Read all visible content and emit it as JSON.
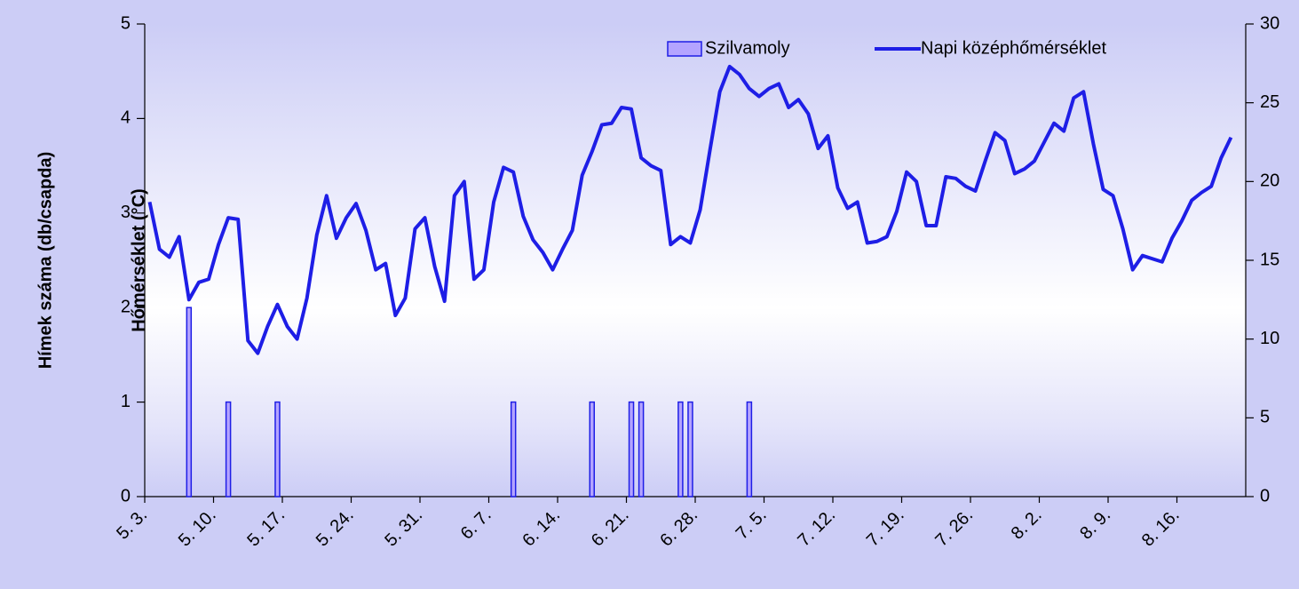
{
  "chart_data": {
    "type": "combo",
    "categories": [
      "5. 3.",
      null,
      null,
      null,
      null,
      null,
      null,
      "5. 10.",
      null,
      null,
      null,
      null,
      null,
      null,
      "5. 17.",
      null,
      null,
      null,
      null,
      null,
      null,
      "5. 24.",
      null,
      null,
      null,
      null,
      null,
      null,
      "5. 31.",
      null,
      null,
      null,
      null,
      null,
      null,
      "6. 7.",
      null,
      null,
      null,
      null,
      null,
      null,
      "6. 14.",
      null,
      null,
      null,
      null,
      null,
      null,
      "6. 21.",
      null,
      null,
      null,
      null,
      null,
      null,
      "6. 28.",
      null,
      null,
      null,
      null,
      null,
      null,
      "7. 5.",
      null,
      null,
      null,
      null,
      null,
      null,
      "7. 12.",
      null,
      null,
      null,
      null,
      null,
      null,
      "7. 19.",
      null,
      null,
      null,
      null,
      null,
      null,
      "7. 26.",
      null,
      null,
      null,
      null,
      null,
      null,
      "8. 2.",
      null,
      null,
      null,
      null,
      null,
      null,
      "8. 9.",
      null,
      null,
      null,
      null,
      null,
      null,
      "8. 16.",
      null,
      null,
      null,
      null,
      null,
      null
    ],
    "series": [
      {
        "name": "Szilvamoly",
        "type": "bar",
        "color": "#b4a4ff",
        "stroke": "#1e1ee6",
        "values": [
          0,
          0,
          0,
          0,
          2,
          0,
          0,
          0,
          1,
          0,
          0,
          0,
          0,
          1,
          0,
          0,
          0,
          0,
          0,
          0,
          0,
          0,
          0,
          0,
          0,
          0,
          0,
          0,
          0,
          0,
          0,
          0,
          0,
          0,
          0,
          0,
          0,
          1,
          0,
          0,
          0,
          0,
          0,
          0,
          0,
          1,
          0,
          0,
          0,
          1,
          1,
          0,
          0,
          0,
          1,
          1,
          0,
          0,
          0,
          0,
          0,
          1,
          0,
          0,
          0,
          0,
          0,
          0,
          0,
          0,
          0,
          0,
          0,
          0,
          0,
          0,
          0,
          0,
          0,
          0,
          0,
          0,
          0,
          0,
          0,
          0,
          0,
          0,
          0,
          0,
          0,
          0,
          0,
          0,
          0,
          0,
          0,
          0,
          0,
          0,
          0,
          0,
          0,
          0,
          0,
          0,
          0,
          0,
          0,
          0,
          0,
          0
        ]
      },
      {
        "name": "Napi középhőmérséklet",
        "type": "line",
        "axis": "y2",
        "color": "#1e1ee6",
        "values": [
          18.7,
          15.7,
          15.2,
          16.5,
          12.5,
          13.6,
          13.8,
          16.0,
          17.7,
          17.6,
          9.9,
          9.1,
          10.8,
          12.2,
          10.8,
          10.0,
          12.6,
          16.6,
          19.1,
          16.4,
          17.7,
          18.6,
          16.9,
          14.4,
          14.8,
          11.5,
          12.6,
          17.0,
          17.7,
          14.6,
          12.4,
          19.1,
          20.0,
          13.8,
          14.4,
          18.7,
          20.9,
          20.6,
          17.8,
          16.3,
          15.5,
          14.4,
          15.7,
          16.9,
          20.4,
          21.9,
          23.6,
          23.7,
          24.7,
          24.6,
          21.5,
          21.0,
          20.7,
          16.0,
          16.5,
          16.1,
          18.2,
          22.0,
          25.7,
          27.3,
          26.8,
          25.9,
          25.4,
          25.9,
          26.2,
          24.7,
          25.2,
          24.3,
          22.1,
          22.9,
          19.6,
          18.3,
          18.7,
          16.1,
          16.2,
          16.5,
          18.1,
          20.6,
          20.0,
          17.2,
          17.2,
          20.3,
          20.2,
          19.7,
          19.4,
          21.3,
          23.1,
          22.6,
          20.5,
          20.8,
          21.3,
          22.5,
          23.7,
          23.2,
          25.3,
          25.7,
          22.4,
          19.5,
          19.1,
          17.0,
          14.4,
          15.3,
          15.1,
          14.9,
          16.4,
          17.5,
          18.8,
          19.3,
          19.7,
          21.5,
          22.8,
          null
        ]
      }
    ],
    "y_label": "Hímek száma (db/csapda)",
    "y2_label": "Hőmérséklet (°C)",
    "ylim": [
      0,
      5
    ],
    "yticks": [
      0,
      1,
      2,
      3,
      4,
      5
    ],
    "y2lim": [
      0,
      30
    ],
    "y2ticks": [
      0,
      5,
      10,
      15,
      20,
      25,
      30
    ],
    "grid": false,
    "legend": "top-right"
  }
}
